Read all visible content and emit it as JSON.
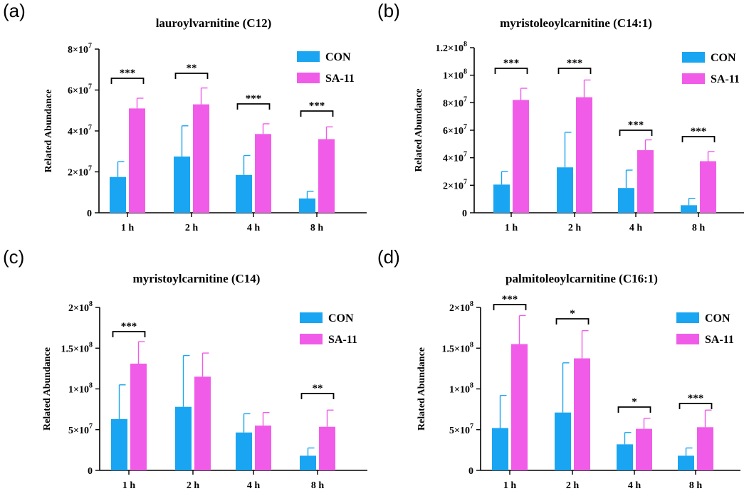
{
  "colors": {
    "CON": "#1aa5f2",
    "SA-11": "#f05ce8"
  },
  "chart_data": [
    {
      "panel_label": "(a)",
      "type": "bar",
      "title": "lauroylvarnitine (C12)",
      "ylabel": "Related Abundance",
      "xlabel": "",
      "categories": [
        "1 h",
        "2 h",
        "4 h",
        "8 h"
      ],
      "ylim": [
        0,
        80000000
      ],
      "yticks": [
        {
          "value": 0,
          "mant": "0",
          "exp": ""
        },
        {
          "value": 20000000,
          "mant": "2×10",
          "exp": "7"
        },
        {
          "value": 40000000,
          "mant": "4×10",
          "exp": "7"
        },
        {
          "value": 60000000,
          "mant": "6×10",
          "exp": "7"
        },
        {
          "value": 80000000,
          "mant": "8×10",
          "exp": "7"
        }
      ],
      "series": [
        {
          "name": "CON",
          "values": [
            17500000,
            27500000,
            18500000,
            7000000
          ],
          "errors": [
            7500000,
            15000000,
            9500000,
            3500000
          ]
        },
        {
          "name": "SA-11",
          "values": [
            51000000,
            53000000,
            38500000,
            36000000
          ],
          "errors": [
            5000000,
            8000000,
            5000000,
            6000000
          ]
        }
      ],
      "significance": [
        "***",
        "**",
        "***",
        "***"
      ],
      "legend": [
        "CON",
        "SA-11"
      ],
      "legend_position": "top-right"
    },
    {
      "panel_label": "(b)",
      "type": "bar",
      "title": "myristoleoylcarnitine (C14:1)",
      "ylabel": "Related Abundance",
      "xlabel": "",
      "categories": [
        "1 h",
        "2 h",
        "4 h",
        "8 h"
      ],
      "ylim": [
        0,
        120000000
      ],
      "yticks": [
        {
          "value": 0,
          "mant": "0",
          "exp": ""
        },
        {
          "value": 20000000,
          "mant": "2×10",
          "exp": "7"
        },
        {
          "value": 40000000,
          "mant": "4×10",
          "exp": "7"
        },
        {
          "value": 60000000,
          "mant": "6×10",
          "exp": "7"
        },
        {
          "value": 80000000,
          "mant": "8×10",
          "exp": "7"
        },
        {
          "value": 100000000,
          "mant": "1×10",
          "exp": "8"
        },
        {
          "value": 120000000,
          "mant": "1.2×10",
          "exp": "8"
        }
      ],
      "series": [
        {
          "name": "CON",
          "values": [
            20500000,
            33000000,
            18000000,
            5500000
          ],
          "errors": [
            9500000,
            25500000,
            13000000,
            5000000
          ]
        },
        {
          "name": "SA-11",
          "values": [
            82000000,
            84000000,
            45500000,
            37500000
          ],
          "errors": [
            8500000,
            12500000,
            7500000,
            7000000
          ]
        }
      ],
      "significance": [
        "***",
        "***",
        "***",
        "***"
      ],
      "legend": [
        "CON",
        "SA-11"
      ],
      "legend_position": "top-right"
    },
    {
      "panel_label": "(c)",
      "type": "bar",
      "title": "myristoylcarnitine (C14)",
      "ylabel": "Related Abundance",
      "xlabel": "",
      "categories": [
        "1 h",
        "2 h",
        "4 h",
        "8 h"
      ],
      "ylim": [
        0,
        200000000
      ],
      "yticks": [
        {
          "value": 0,
          "mant": "0",
          "exp": ""
        },
        {
          "value": 50000000,
          "mant": "5×10",
          "exp": "7"
        },
        {
          "value": 100000000,
          "mant": "1×10",
          "exp": "8"
        },
        {
          "value": 150000000,
          "mant": "1.5×10",
          "exp": "8"
        },
        {
          "value": 200000000,
          "mant": "2×10",
          "exp": "8"
        }
      ],
      "series": [
        {
          "name": "CON",
          "values": [
            63000000,
            78000000,
            46500000,
            18000000
          ],
          "errors": [
            42000000,
            63000000,
            23000000,
            9500000
          ]
        },
        {
          "name": "SA-11",
          "values": [
            131000000,
            115000000,
            55000000,
            53500000
          ],
          "errors": [
            27000000,
            29000000,
            16000000,
            20500000
          ]
        }
      ],
      "significance": [
        "***",
        "",
        "",
        "**"
      ],
      "legend": [
        "CON",
        "SA-11"
      ],
      "legend_position": "top-right"
    },
    {
      "panel_label": "(d)",
      "type": "bar",
      "title": "palmitoleoylcarnitine (C16:1)",
      "ylabel": "Related Abundance",
      "xlabel": "",
      "categories": [
        "1 h",
        "2 h",
        "4 h",
        "8 h"
      ],
      "ylim": [
        0,
        200000000
      ],
      "yticks": [
        {
          "value": 0,
          "mant": "0",
          "exp": ""
        },
        {
          "value": 50000000,
          "mant": "5×10",
          "exp": "7"
        },
        {
          "value": 100000000,
          "mant": "1×10",
          "exp": "8"
        },
        {
          "value": 150000000,
          "mant": "1.5×10",
          "exp": "8"
        },
        {
          "value": 200000000,
          "mant": "2×10",
          "exp": "8"
        }
      ],
      "series": [
        {
          "name": "CON",
          "values": [
            52000000,
            71000000,
            32000000,
            18000000
          ],
          "errors": [
            40000000,
            61000000,
            14500000,
            9500000
          ]
        },
        {
          "name": "SA-11",
          "values": [
            155000000,
            137500000,
            51000000,
            53000000
          ],
          "errors": [
            35000000,
            34000000,
            13000000,
            21000000
          ]
        }
      ],
      "significance": [
        "***",
        "*",
        "*",
        "***"
      ],
      "legend": [
        "CON",
        "SA-11"
      ],
      "legend_position": "top-right"
    }
  ]
}
